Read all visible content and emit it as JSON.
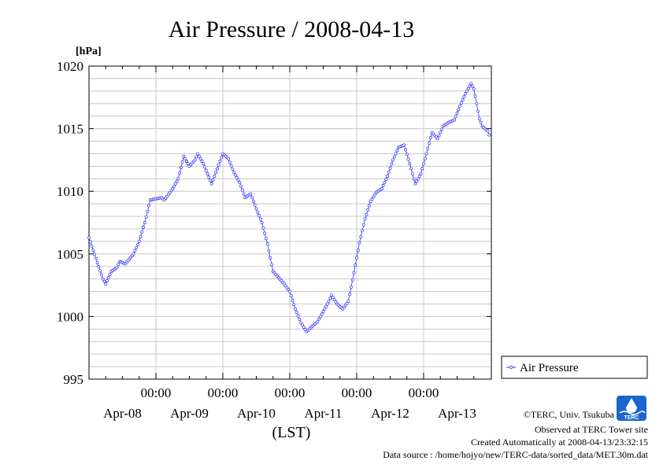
{
  "chart_data": {
    "type": "line",
    "title": "Air Pressure / 2008-04-13",
    "ylabel": "[hPa]",
    "xlabel": "(LST)",
    "ylim": [
      995,
      1020
    ],
    "yticks": [
      "995",
      "1000",
      "1005",
      "1010",
      "1015",
      "1020"
    ],
    "xlim": [
      "2008-04-08 00:00",
      "2008-04-13 23:30"
    ],
    "x_time_labels": [
      "00:00",
      "00:00",
      "00:00",
      "00:00",
      "00:00"
    ],
    "x_date_labels": [
      "Apr-08",
      "Apr-09",
      "Apr-10",
      "Apr-11",
      "Apr-12",
      "Apr-13"
    ],
    "grid": true,
    "legend_position": "right",
    "series": [
      {
        "name": "Air Pressure",
        "color": "#3333ff",
        "points": [
          [
            "2008-04-08 00:00",
            1006.3
          ],
          [
            "2008-04-08 03:00",
            1004.3
          ],
          [
            "2008-04-08 05:00",
            1003.0
          ],
          [
            "2008-04-08 06:00",
            1002.6
          ],
          [
            "2008-04-08 08:00",
            1003.6
          ],
          [
            "2008-04-08 10:00",
            1003.9
          ],
          [
            "2008-04-08 11:00",
            1004.4
          ],
          [
            "2008-04-08 13:00",
            1004.2
          ],
          [
            "2008-04-08 16:00",
            1005.0
          ],
          [
            "2008-04-08 18:00",
            1006.0
          ],
          [
            "2008-04-08 20:00",
            1007.5
          ],
          [
            "2008-04-08 22:00",
            1009.3
          ],
          [
            "2008-04-09 02:00",
            1009.5
          ],
          [
            "2008-04-09 03:00",
            1009.3
          ],
          [
            "2008-04-09 06:00",
            1010.2
          ],
          [
            "2008-04-09 08:00",
            1011.0
          ],
          [
            "2008-04-09 10:00",
            1012.8
          ],
          [
            "2008-04-09 12:00",
            1012.0
          ],
          [
            "2008-04-09 14:00",
            1012.5
          ],
          [
            "2008-04-09 15:00",
            1013.0
          ],
          [
            "2008-04-09 17:00",
            1012.2
          ],
          [
            "2008-04-09 20:00",
            1010.6
          ],
          [
            "2008-04-09 22:00",
            1011.8
          ],
          [
            "2008-04-10 00:00",
            1013.0
          ],
          [
            "2008-04-10 02:00",
            1012.6
          ],
          [
            "2008-04-10 04:00",
            1011.5
          ],
          [
            "2008-04-10 06:00",
            1010.7
          ],
          [
            "2008-04-10 08:00",
            1009.5
          ],
          [
            "2008-04-10 10:00",
            1009.8
          ],
          [
            "2008-04-10 12:00",
            1008.6
          ],
          [
            "2008-04-10 14:00",
            1007.5
          ],
          [
            "2008-04-10 16:00",
            1005.8
          ],
          [
            "2008-04-10 18:00",
            1003.6
          ],
          [
            "2008-04-10 20:00",
            1003.1
          ],
          [
            "2008-04-10 22:00",
            1002.6
          ],
          [
            "2008-04-11 00:00",
            1002.0
          ],
          [
            "2008-04-11 02:00",
            1000.6
          ],
          [
            "2008-04-11 04:00",
            999.5
          ],
          [
            "2008-04-11 06:00",
            998.8
          ],
          [
            "2008-04-11 08:00",
            999.2
          ],
          [
            "2008-04-11 10:00",
            999.6
          ],
          [
            "2008-04-11 12:00",
            1000.4
          ],
          [
            "2008-04-11 14:00",
            1001.2
          ],
          [
            "2008-04-11 15:00",
            1001.7
          ],
          [
            "2008-04-11 17:00",
            1001.0
          ],
          [
            "2008-04-11 19:00",
            1000.6
          ],
          [
            "2008-04-11 21:00",
            1001.2
          ],
          [
            "2008-04-11 23:00",
            1003.5
          ],
          [
            "2008-04-12 01:00",
            1005.9
          ],
          [
            "2008-04-12 03:00",
            1007.8
          ],
          [
            "2008-04-12 05:00",
            1009.2
          ],
          [
            "2008-04-12 07:00",
            1009.9
          ],
          [
            "2008-04-12 09:00",
            1010.2
          ],
          [
            "2008-04-12 11:00",
            1011.2
          ],
          [
            "2008-04-12 13:00",
            1012.5
          ],
          [
            "2008-04-12 15:00",
            1013.5
          ],
          [
            "2008-04-12 17:00",
            1013.7
          ],
          [
            "2008-04-12 19:00",
            1012.2
          ],
          [
            "2008-04-12 21:00",
            1010.6
          ],
          [
            "2008-04-12 23:00",
            1011.4
          ],
          [
            "2008-04-13 01:00",
            1013.0
          ],
          [
            "2008-04-13 03:00",
            1014.7
          ],
          [
            "2008-04-13 05:00",
            1014.2
          ],
          [
            "2008-04-13 07:00",
            1015.2
          ],
          [
            "2008-04-13 09:00",
            1015.5
          ],
          [
            "2008-04-13 11:00",
            1015.7
          ],
          [
            "2008-04-13 13:00",
            1016.8
          ],
          [
            "2008-04-13 15:00",
            1017.8
          ],
          [
            "2008-04-13 17:00",
            1018.6
          ],
          [
            "2008-04-13 18:00",
            1018.2
          ],
          [
            "2008-04-13 19:00",
            1017.0
          ],
          [
            "2008-04-13 20:00",
            1015.8
          ],
          [
            "2008-04-13 21:00",
            1015.2
          ],
          [
            "2008-04-13 22:00",
            1015.0
          ],
          [
            "2008-04-13 23:00",
            1014.8
          ],
          [
            "2008-04-13 23:30",
            1014.5
          ]
        ]
      }
    ]
  },
  "legend": {
    "label": "Air Pressure"
  },
  "logo": {
    "text": "TERC",
    "color": "#1a66cc"
  },
  "credits": {
    "line1": "©TERC, Univ. Tsukuba",
    "line2": "Observed at TERC Tower site",
    "line3": "Created Automatically at 2008-04-13/23:32:15",
    "line4": "Data source : /home/hojyo/new/TERC-data/sorted_data/MET.30m.dat"
  }
}
